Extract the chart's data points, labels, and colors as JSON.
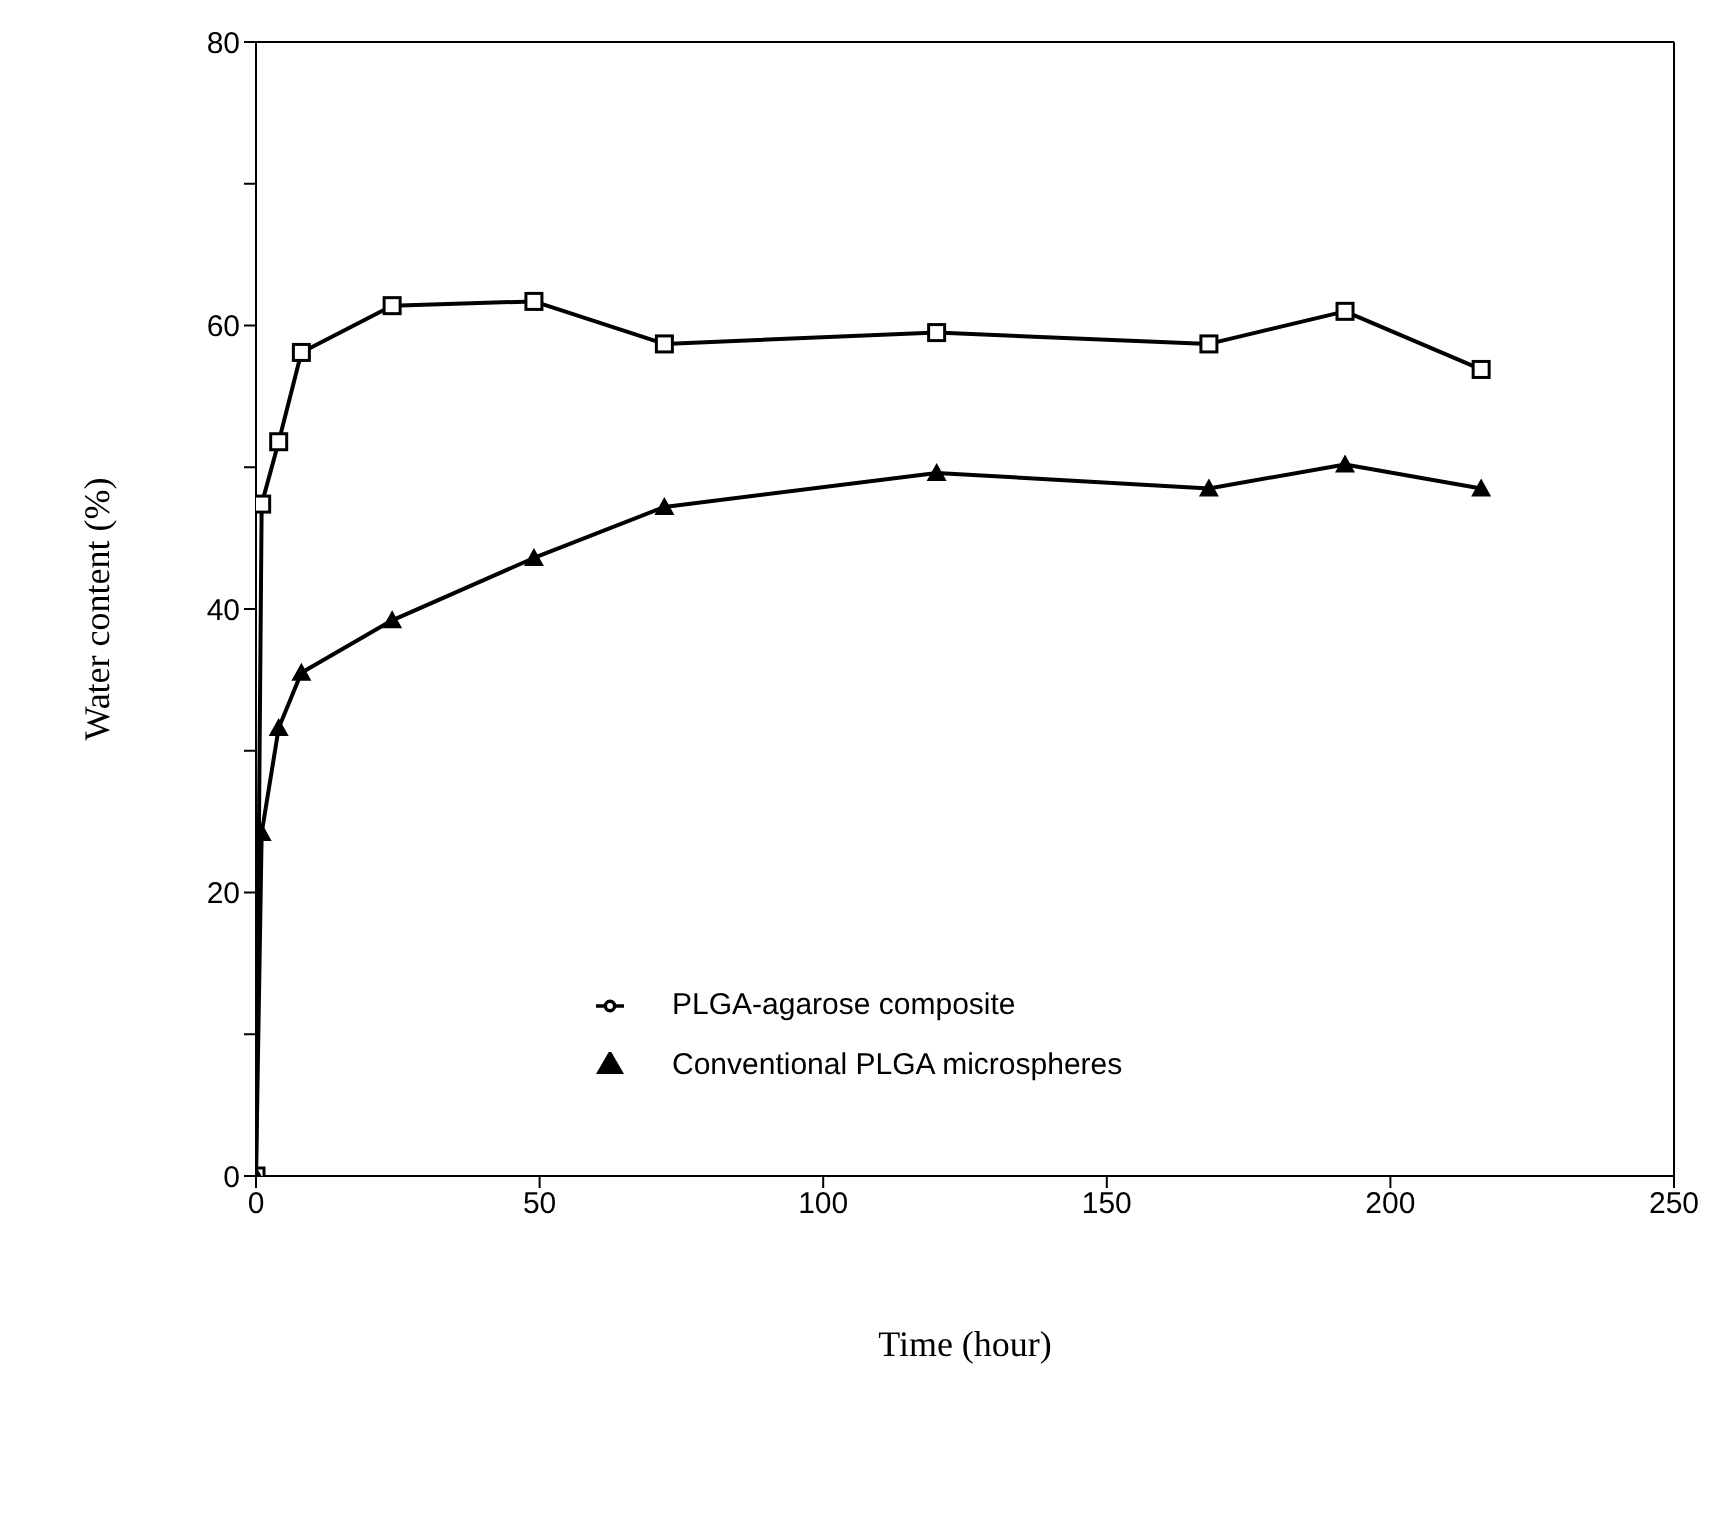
{
  "chart_data": {
    "type": "line",
    "xlabel": "Time (hour)",
    "ylabel": "Water content (%)",
    "xlim": [
      0,
      250
    ],
    "xticks": [
      0,
      50,
      100,
      150,
      200,
      250
    ],
    "ylim": [
      0,
      80
    ],
    "yticks": [
      0,
      {
        "value": 10,
        "label": null
      },
      20,
      {
        "value": 30,
        "label": null
      },
      40,
      {
        "value": 50,
        "label": null
      },
      60,
      {
        "value": 70,
        "label": null
      },
      80
    ],
    "x": [
      0,
      1,
      4,
      8,
      24,
      49,
      72,
      120,
      168,
      192,
      216
    ],
    "series": [
      {
        "name": "PLGA-agarose composite",
        "color": "#000000",
        "marker": "square",
        "values": [
          0,
          47.4,
          51.8,
          58.1,
          61.4,
          61.7,
          58.7,
          59.5,
          58.7,
          61.0,
          56.9
        ]
      },
      {
        "name": "Conventional PLGA microspheres",
        "color": "#000000",
        "marker": "triangle",
        "values": [
          0,
          24.2,
          31.6,
          35.5,
          39.2,
          43.6,
          47.2,
          49.6,
          48.5,
          50.2,
          48.5
        ]
      }
    ],
    "grid": false,
    "legend": "bottom",
    "line_style": "solid"
  }
}
